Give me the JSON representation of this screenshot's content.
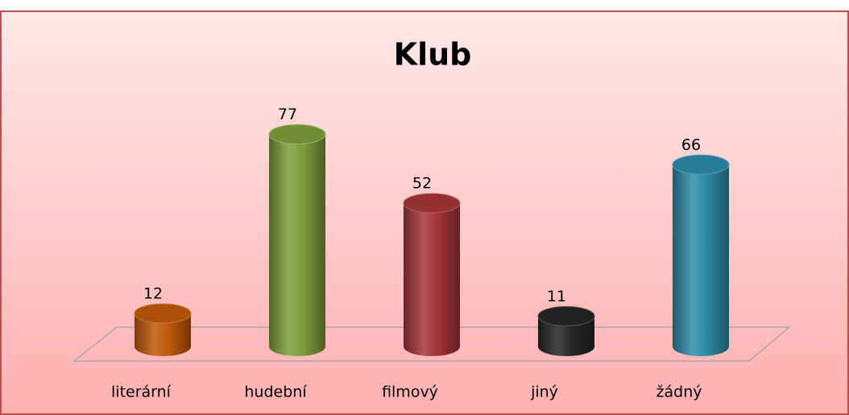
{
  "chart_data": {
    "type": "bar3d",
    "title": "Klub",
    "categories": [
      "literární",
      "hudební",
      "filmový",
      "jiný",
      "žádný"
    ],
    "values": [
      12,
      77,
      52,
      11,
      66
    ],
    "colors": [
      "#c0590a",
      "#7e9d3c",
      "#a3363a",
      "#262626",
      "#2e8aa8"
    ]
  }
}
